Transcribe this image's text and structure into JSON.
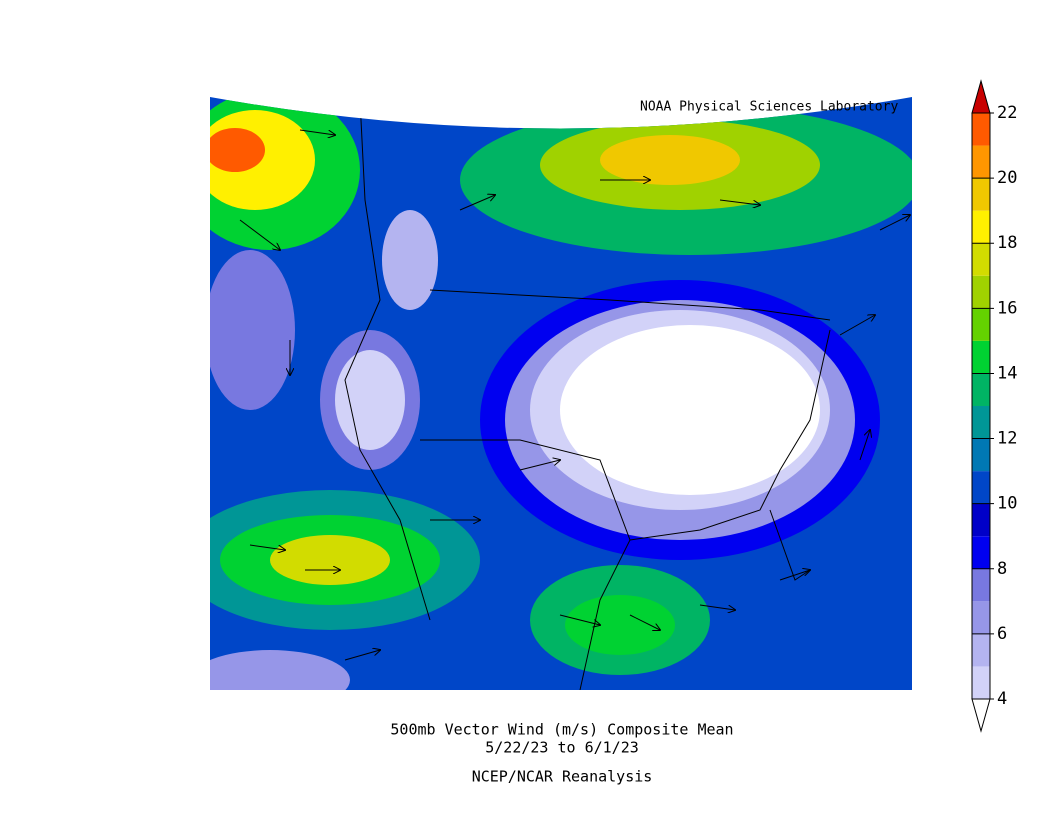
{
  "header": {
    "lab": "NOAA Physical Sciences Laboratory"
  },
  "caption": {
    "line1": "500mb Vector Wind (m/s) Composite Mean",
    "line2": "5/22/23  to 6/1/23",
    "line3": "NCEP/NCAR Reanalysis"
  },
  "colorbar": {
    "ticks": [
      4,
      6,
      8,
      10,
      12,
      14,
      16,
      18,
      20,
      22
    ],
    "colors": [
      "#ffffff",
      "#d2d2f8",
      "#b4b4f0",
      "#9696e8",
      "#7878e0",
      "#0000f0",
      "#0000c8",
      "#0046c8",
      "#0078b4",
      "#009696",
      "#00b464",
      "#00d232",
      "#64d200",
      "#a0d200",
      "#d2dc00",
      "#fff000",
      "#f0c800",
      "#ff9600",
      "#ff5a00",
      "#ff2800",
      "#c80000"
    ]
  }
}
